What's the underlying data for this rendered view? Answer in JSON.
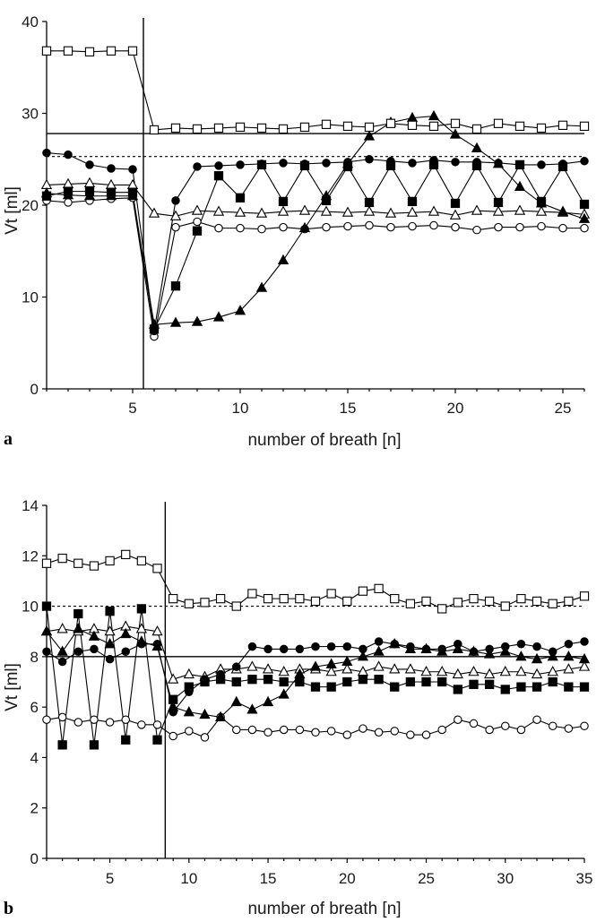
{
  "chart_data": [
    {
      "type": "line",
      "panel_label": "a",
      "xlabel": "number of breath [n]",
      "ylabel": "Vt [ml]",
      "xlim": [
        1,
        26
      ],
      "ylim": [
        0,
        40
      ],
      "xticks": [
        5,
        10,
        15,
        20,
        25
      ],
      "yticks": [
        0,
        10,
        20,
        30,
        40
      ],
      "grid": false,
      "reference_lines": {
        "solid_y": 27.8,
        "dashed_y": 25.3,
        "vertical_x": 5.5
      },
      "x": [
        1,
        2,
        3,
        4,
        5,
        6,
        7,
        8,
        9,
        10,
        11,
        12,
        13,
        14,
        15,
        16,
        17,
        18,
        19,
        20,
        21,
        22,
        23,
        24,
        25,
        26
      ],
      "series": [
        {
          "marker": "open-square",
          "values": [
            36.8,
            36.8,
            36.7,
            36.8,
            36.8,
            28.2,
            28.4,
            28.3,
            28.4,
            28.5,
            28.4,
            28.3,
            28.5,
            28.8,
            28.6,
            28.5,
            28.9,
            28.7,
            28.6,
            28.9,
            28.3,
            28.9,
            28.6,
            28.4,
            28.7,
            28.6
          ]
        },
        {
          "marker": "filled-circle",
          "values": [
            25.7,
            25.5,
            24.4,
            24.0,
            23.9,
            6.3,
            20.5,
            24.2,
            24.3,
            24.4,
            24.5,
            24.6,
            24.5,
            24.6,
            24.7,
            25.0,
            24.8,
            24.6,
            24.9,
            24.7,
            24.7,
            24.6,
            24.4,
            24.4,
            24.5,
            24.8
          ]
        },
        {
          "marker": "filled-square",
          "values": [
            21.0,
            21.5,
            21.5,
            21.4,
            21.4,
            6.5,
            11.2,
            17.2,
            23.2,
            20.8,
            24.4,
            20.4,
            24.3,
            20.5,
            24.2,
            20.3,
            24.3,
            20.4,
            24.4,
            20.2,
            24.3,
            20.3,
            24.4,
            20.4,
            24.2,
            20.1
          ]
        },
        {
          "marker": "filled-triangle",
          "values": [
            21.3,
            21.1,
            21.0,
            21.0,
            21.0,
            7.0,
            7.2,
            7.3,
            7.8,
            8.5,
            11.0,
            14.0,
            17.5,
            21.0,
            24.5,
            27.5,
            29.0,
            29.5,
            29.7,
            27.7,
            26.2,
            24.5,
            22.0,
            20.2,
            19.3,
            18.5
          ]
        },
        {
          "marker": "open-triangle",
          "values": [
            22.2,
            22.3,
            22.4,
            22.2,
            22.2,
            19.1,
            18.8,
            19.4,
            19.3,
            19.2,
            19.1,
            19.3,
            19.4,
            19.3,
            19.2,
            19.3,
            19.1,
            19.2,
            19.3,
            18.9,
            19.4,
            19.3,
            19.4,
            19.3,
            19.2,
            19.0
          ]
        },
        {
          "marker": "open-circle",
          "values": [
            20.5,
            20.3,
            20.5,
            20.7,
            20.8,
            5.7,
            17.6,
            18.2,
            17.5,
            17.5,
            17.4,
            17.6,
            17.4,
            17.6,
            17.7,
            17.8,
            17.6,
            17.7,
            17.8,
            17.6,
            17.3,
            17.6,
            17.6,
            17.7,
            17.5,
            17.5
          ]
        }
      ]
    },
    {
      "type": "line",
      "panel_label": "b",
      "xlabel": "number of breath [n]",
      "ylabel": "Vt [ml]",
      "xlim": [
        1,
        35
      ],
      "ylim": [
        0,
        14
      ],
      "xticks": [
        5,
        10,
        15,
        20,
        25,
        30,
        35
      ],
      "yticks": [
        0,
        2,
        4,
        6,
        8,
        10,
        12,
        14
      ],
      "grid": false,
      "reference_lines": {
        "solid_y": 8.0,
        "dashed_y": 10.0,
        "vertical_x": 8.5
      },
      "x": [
        1,
        2,
        3,
        4,
        5,
        6,
        7,
        8,
        9,
        10,
        11,
        12,
        13,
        14,
        15,
        16,
        17,
        18,
        19,
        20,
        21,
        22,
        23,
        24,
        25,
        26,
        27,
        28,
        29,
        30,
        31,
        32,
        33,
        34,
        35
      ],
      "series": [
        {
          "marker": "open-square",
          "values": [
            11.7,
            11.9,
            11.7,
            11.6,
            11.8,
            12.05,
            11.8,
            11.5,
            10.3,
            10.1,
            10.15,
            10.3,
            10.0,
            10.5,
            10.3,
            10.3,
            10.3,
            10.2,
            10.5,
            10.2,
            10.6,
            10.7,
            10.3,
            10.1,
            10.2,
            9.9,
            10.15,
            10.3,
            10.2,
            10.0,
            10.3,
            10.2,
            10.1,
            10.2,
            10.4
          ]
        },
        {
          "marker": "filled-circle",
          "values": [
            8.2,
            7.8,
            8.2,
            8.3,
            7.9,
            8.2,
            8.5,
            8.5,
            5.8,
            6.6,
            7.1,
            7.3,
            7.6,
            8.4,
            8.3,
            8.3,
            8.3,
            8.4,
            8.4,
            8.4,
            8.3,
            8.6,
            8.5,
            8.4,
            8.3,
            8.3,
            8.5,
            8.2,
            8.3,
            8.4,
            8.5,
            8.4,
            8.2,
            8.5,
            8.6
          ]
        },
        {
          "marker": "filled-square",
          "values": [
            10.0,
            4.5,
            9.7,
            4.5,
            9.8,
            4.7,
            9.9,
            4.7,
            6.3,
            6.8,
            7.0,
            7.1,
            7.0,
            7.1,
            7.1,
            7.0,
            7.0,
            6.8,
            6.8,
            7.0,
            7.1,
            7.1,
            6.8,
            7.0,
            7.0,
            7.0,
            6.7,
            6.9,
            6.9,
            6.7,
            6.8,
            6.8,
            7.0,
            6.8,
            6.8
          ]
        },
        {
          "marker": "filled-triangle",
          "values": [
            9.0,
            8.2,
            9.1,
            8.8,
            8.5,
            8.9,
            8.6,
            8.4,
            6.0,
            5.8,
            5.7,
            5.6,
            6.2,
            5.9,
            6.2,
            6.5,
            7.3,
            7.6,
            7.7,
            7.8,
            8.0,
            8.2,
            8.5,
            8.3,
            8.3,
            8.2,
            8.3,
            8.2,
            8.1,
            8.2,
            8.0,
            7.9,
            8.0,
            8.0,
            7.9
          ]
        },
        {
          "marker": "open-triangle",
          "values": [
            9.0,
            9.1,
            9.0,
            9.1,
            9.0,
            9.2,
            9.1,
            9.0,
            7.1,
            7.3,
            7.2,
            7.5,
            7.5,
            7.6,
            7.5,
            7.4,
            7.5,
            7.5,
            7.4,
            7.5,
            7.4,
            7.6,
            7.5,
            7.5,
            7.4,
            7.4,
            7.3,
            7.4,
            7.3,
            7.4,
            7.4,
            7.3,
            7.4,
            7.5,
            7.6
          ]
        },
        {
          "marker": "open-circle",
          "values": [
            5.5,
            5.6,
            5.4,
            5.5,
            5.4,
            5.5,
            5.3,
            5.3,
            4.85,
            5.05,
            4.8,
            5.6,
            5.1,
            5.1,
            5.0,
            5.1,
            5.1,
            5.0,
            5.05,
            4.9,
            5.15,
            5.0,
            5.05,
            4.9,
            4.9,
            5.1,
            5.5,
            5.35,
            5.1,
            5.25,
            5.1,
            5.5,
            5.25,
            5.15,
            5.25
          ]
        }
      ]
    }
  ]
}
